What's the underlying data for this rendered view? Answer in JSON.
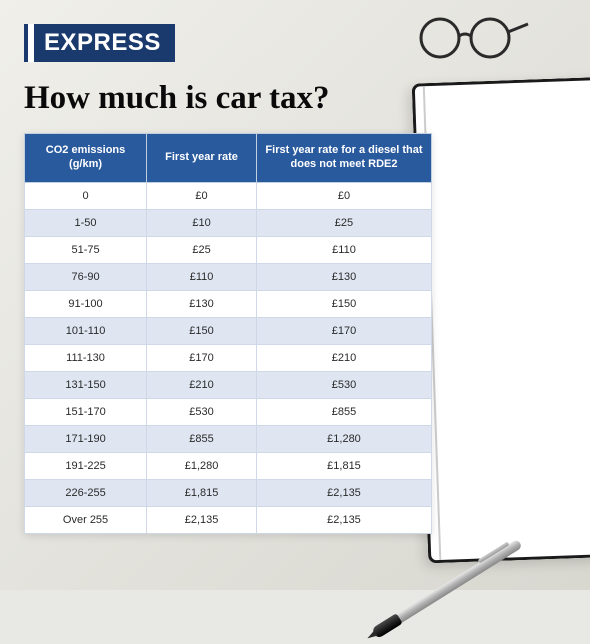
{
  "brand": {
    "logo_text": "EXPRESS"
  },
  "title": "How much is car tax?",
  "table": {
    "type": "table",
    "header_bg": "#2a5a9e",
    "header_text_color": "#ffffff",
    "row_bg": "#ffffff",
    "row_alt_bg": "#dfe6f2",
    "border_color": "#cfd8e6",
    "font_family": "Arial",
    "header_fontsize": 11,
    "cell_fontsize": 11,
    "columns": [
      "CO2 emissions (g/km)",
      "First year rate",
      "First year rate for a diesel that does not meet RDE2"
    ],
    "rows": [
      [
        "0",
        "£0",
        "£0"
      ],
      [
        "1-50",
        "£10",
        "£25"
      ],
      [
        "51-75",
        "£25",
        "£110"
      ],
      [
        "76-90",
        "£110",
        "£130"
      ],
      [
        "91-100",
        "£130",
        "£150"
      ],
      [
        "101-110",
        "£150",
        "£170"
      ],
      [
        "111-130",
        "£170",
        "£210"
      ],
      [
        "131-150",
        "£210",
        "£530"
      ],
      [
        "151-170",
        "£530",
        "£855"
      ],
      [
        "171-190",
        "£855",
        "£1,280"
      ],
      [
        "191-225",
        "£1,280",
        "£1,815"
      ],
      [
        "226-255",
        "£1,815",
        "£2,135"
      ],
      [
        "Over 255",
        "£2,135",
        "£2,135"
      ]
    ]
  },
  "decor": {
    "background_color": "#e8e8e4",
    "notebook_border": "#1a1a1a",
    "pen_colors": {
      "body": "#b0b0b0",
      "grip": "#1a1a1a"
    }
  }
}
